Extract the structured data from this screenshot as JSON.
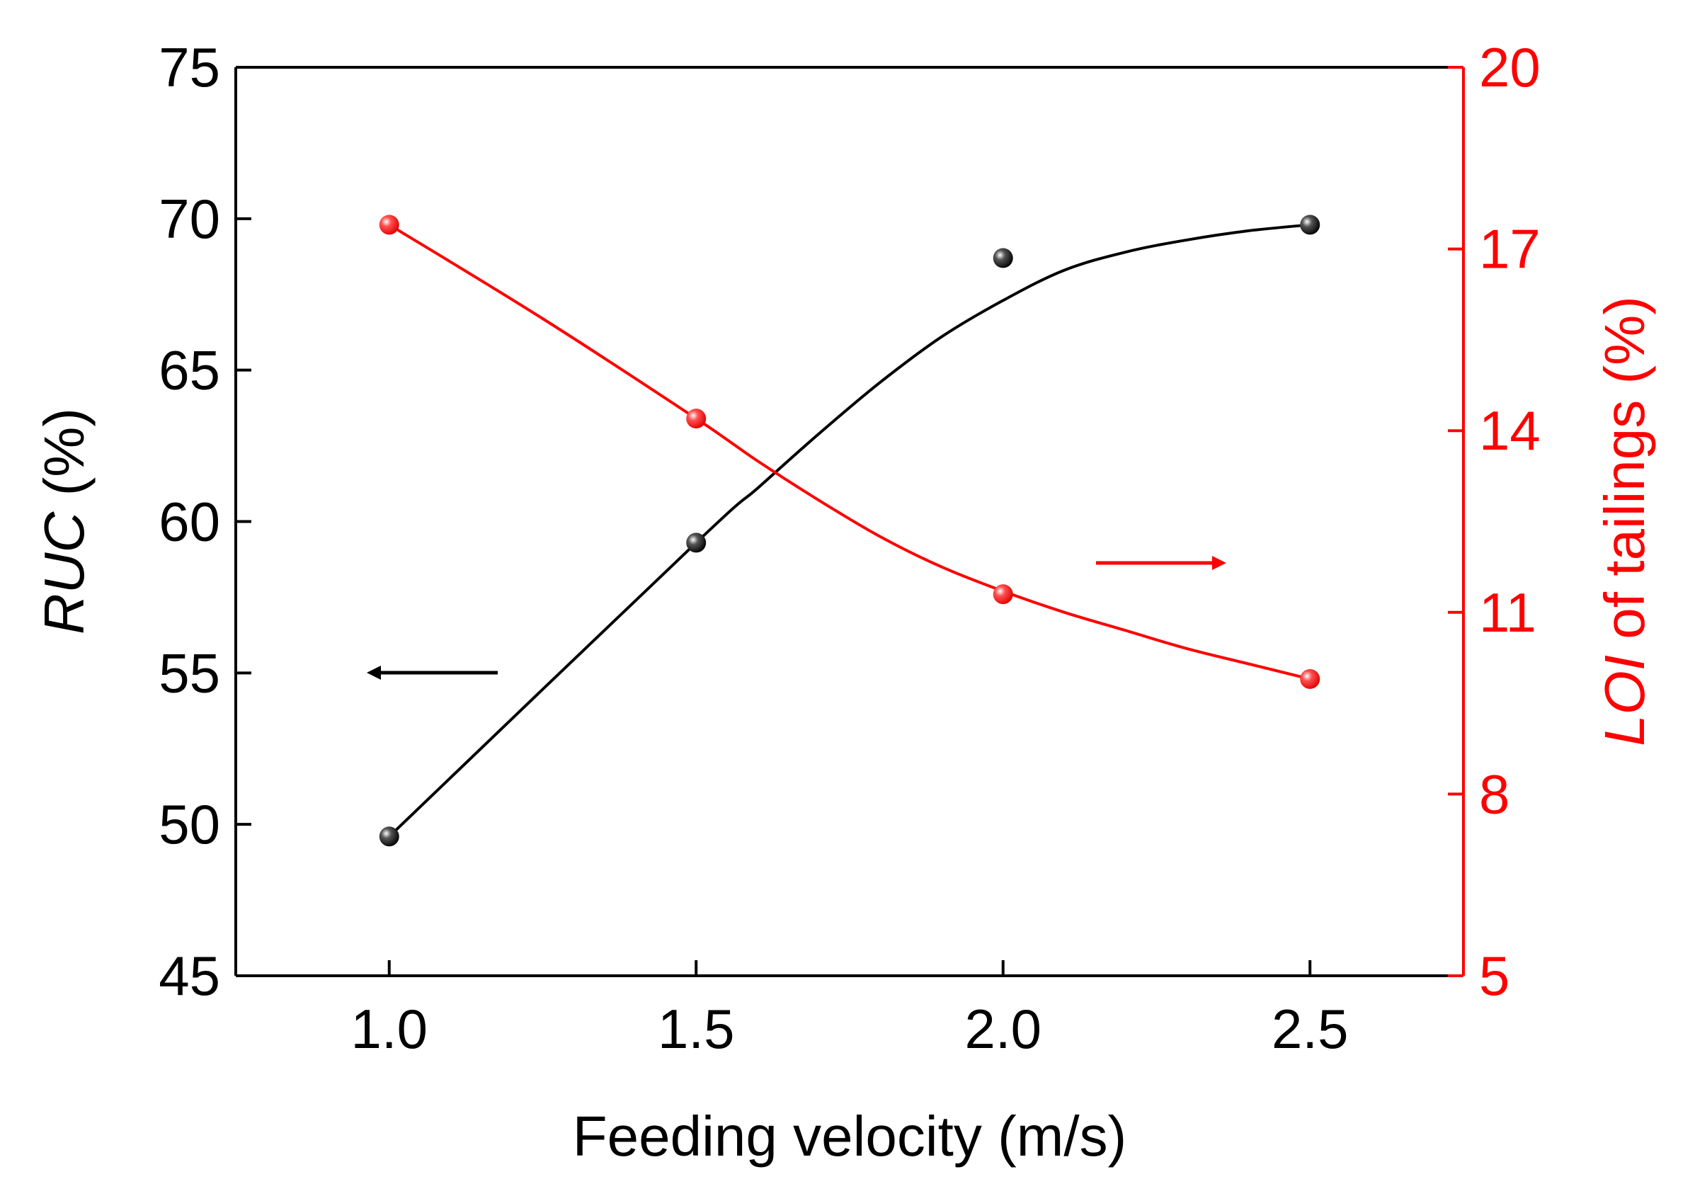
{
  "chart_data": {
    "type": "scatter",
    "title": "",
    "xlabel": "Feeding velocity (m/s)",
    "ylabel_left_italic": "RUC",
    "ylabel_left_suffix": " (%)",
    "ylabel_right_italic": "LOI",
    "ylabel_right_suffix": " of tailings (%)",
    "xlim": [
      0.75,
      2.75
    ],
    "ylim_left": [
      45,
      75
    ],
    "ylim_right": [
      5,
      20
    ],
    "x_ticks": [
      "1.0",
      "1.5",
      "2.0",
      "2.5"
    ],
    "x_tick_values": [
      1.0,
      1.5,
      2.0,
      2.5
    ],
    "y_left_ticks": [
      "45",
      "50",
      "55",
      "60",
      "65",
      "70",
      "75"
    ],
    "y_left_tick_values": [
      45,
      50,
      55,
      60,
      65,
      70,
      75
    ],
    "y_right_ticks": [
      "5",
      "8",
      "11",
      "14",
      "17",
      "20"
    ],
    "y_right_tick_values": [
      5,
      8,
      11,
      14,
      17,
      20
    ],
    "grid": false,
    "series": [
      {
        "name": "RUC",
        "axis": "left",
        "color": "#000000",
        "x": [
          1.0,
          1.5,
          2.0,
          2.5
        ],
        "values": [
          49.6,
          59.3,
          68.7,
          69.8
        ],
        "fit_curve": {
          "x": [
            1.0,
            1.5,
            1.6,
            1.7,
            1.8,
            1.9,
            2.0,
            2.1,
            2.2,
            2.3,
            2.4,
            2.5
          ],
          "y": [
            49.6,
            59.3,
            61.1,
            62.9,
            64.6,
            66.1,
            67.3,
            68.3,
            68.9,
            69.3,
            69.6,
            69.8
          ]
        },
        "arrow_direction": "left"
      },
      {
        "name": "LOI of tailings",
        "axis": "right",
        "color": "#ff0000",
        "x": [
          1.0,
          1.5,
          2.0,
          2.5
        ],
        "values": [
          17.4,
          14.2,
          11.3,
          9.9
        ],
        "fit_curve": {
          "x": [
            1.0,
            1.25,
            1.5,
            1.6,
            1.7,
            1.8,
            1.9,
            2.0,
            2.1,
            2.2,
            2.3,
            2.4,
            2.5
          ],
          "y": [
            17.4,
            15.85,
            14.2,
            13.5,
            12.85,
            12.25,
            11.75,
            11.35,
            11.0,
            10.7,
            10.4,
            10.15,
            9.9
          ]
        },
        "arrow_direction": "right"
      }
    ]
  }
}
